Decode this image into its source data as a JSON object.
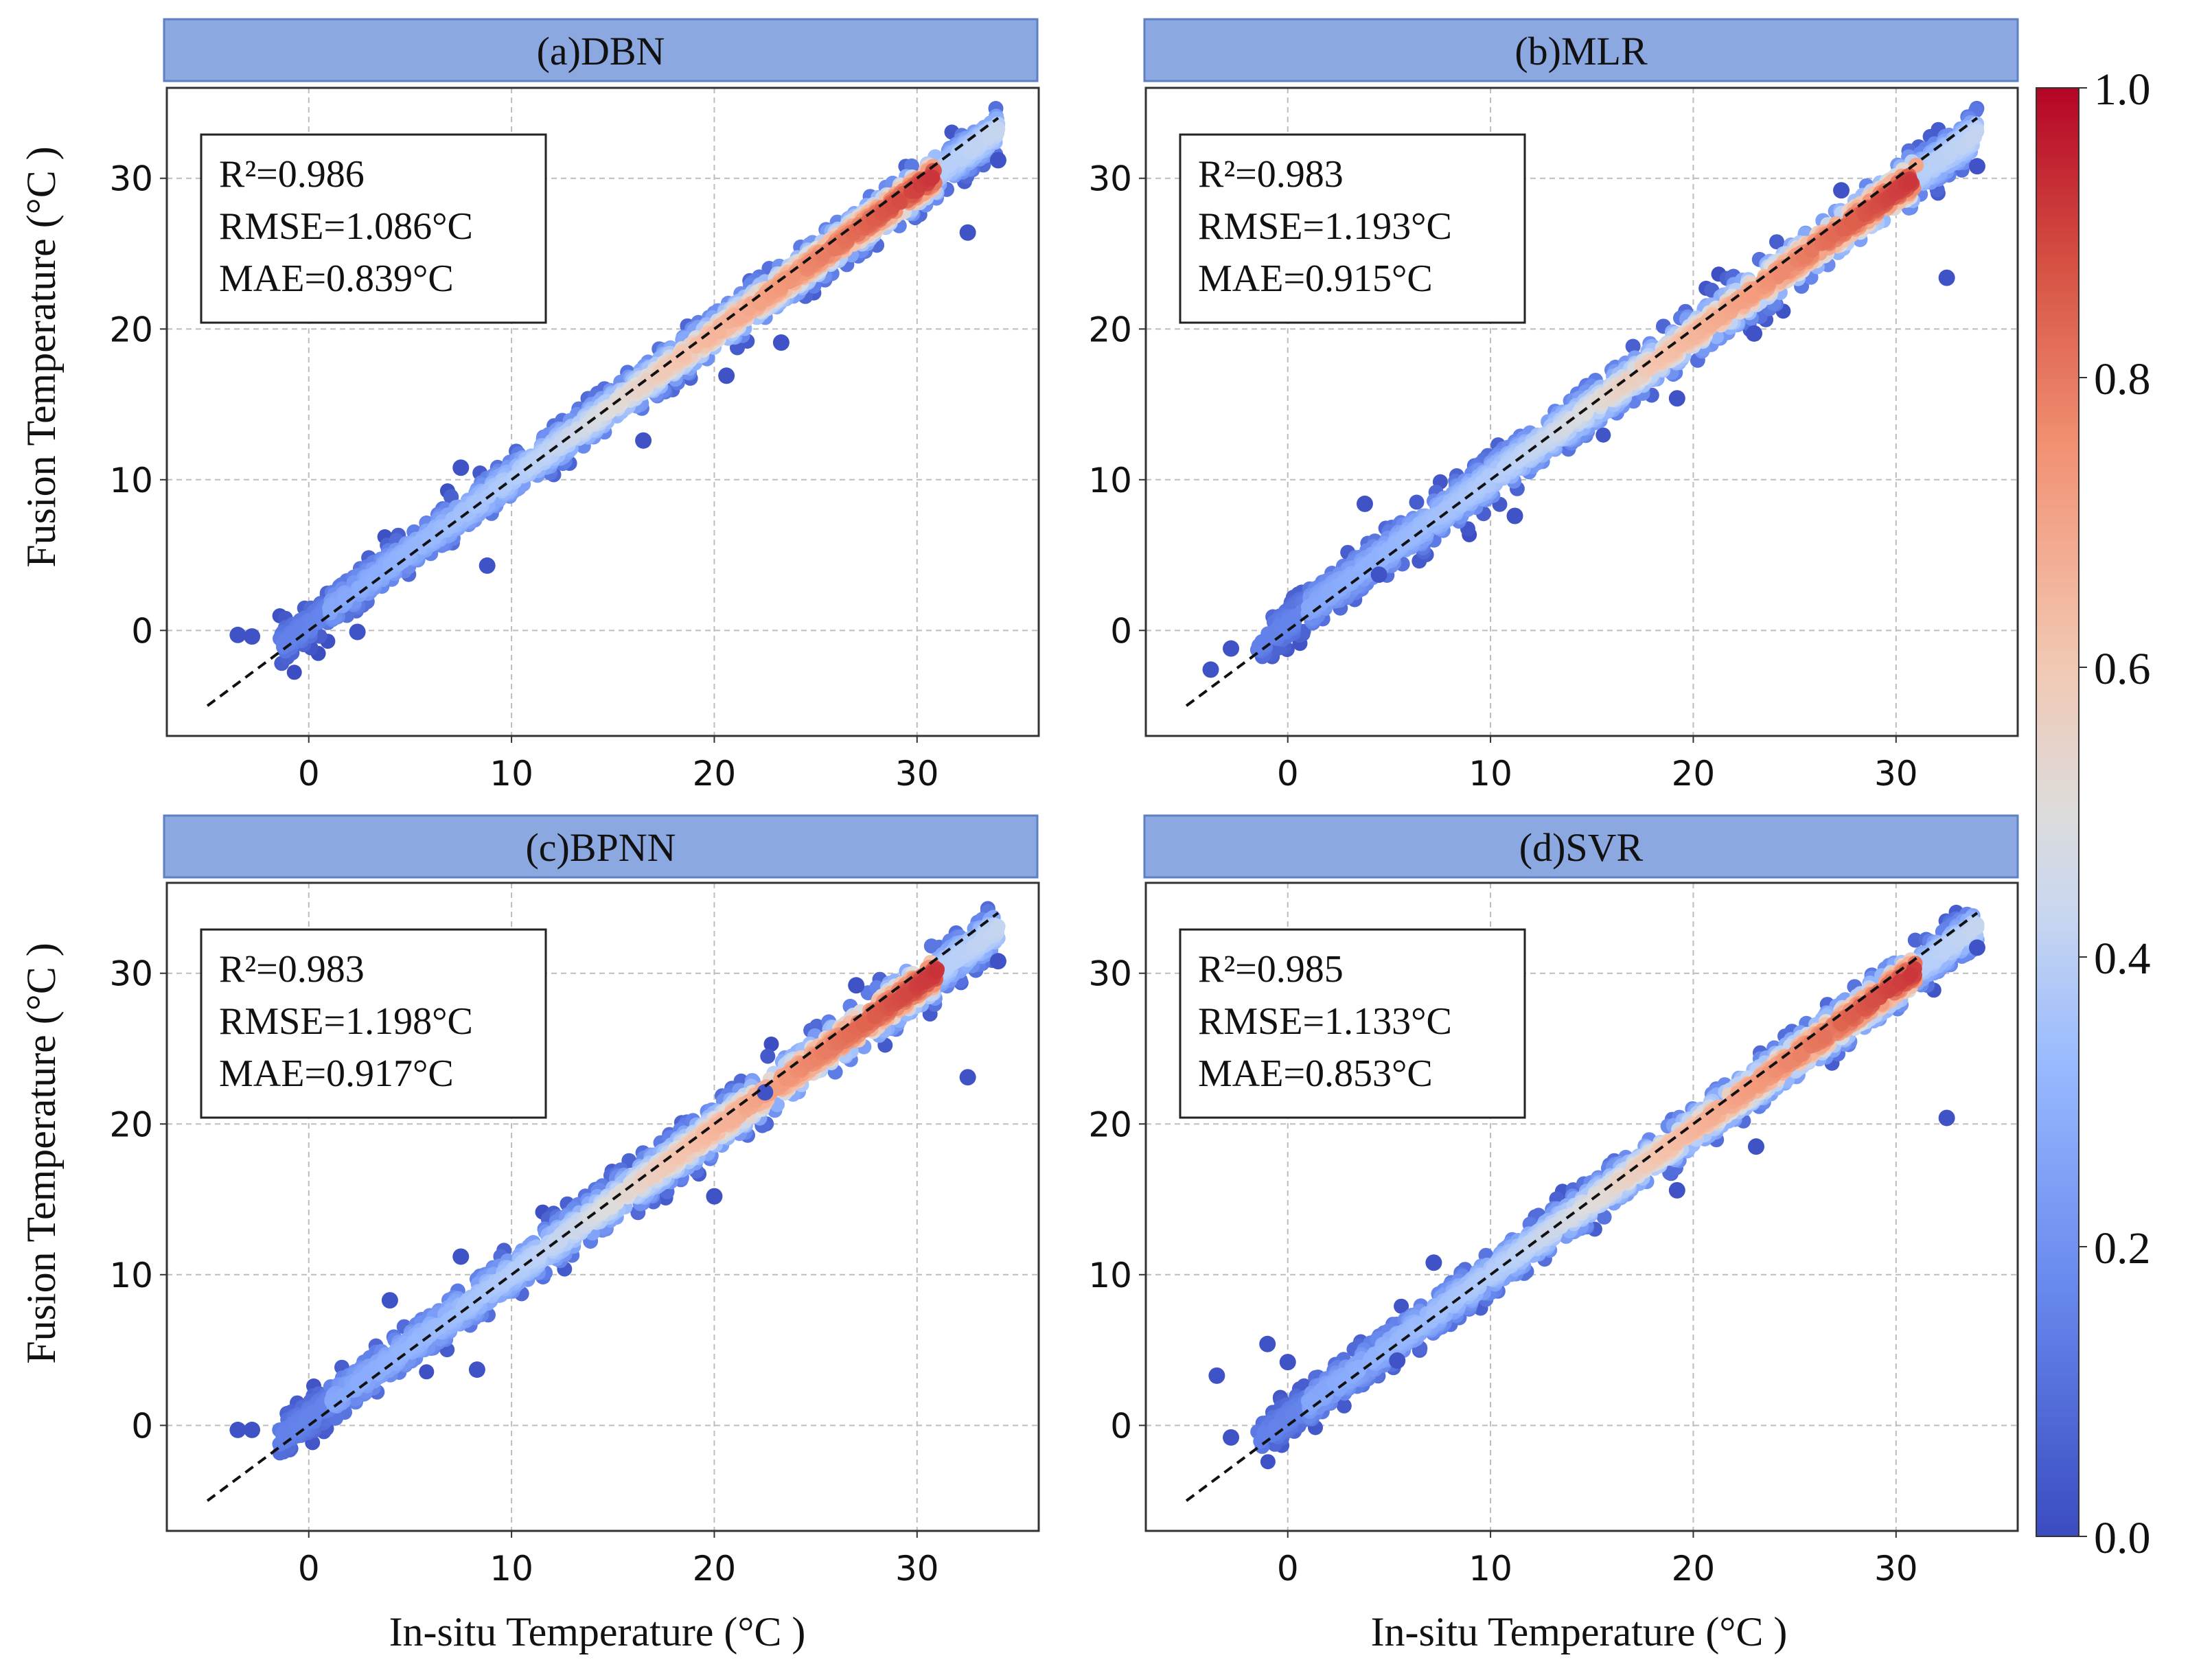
{
  "figure": {
    "ylabel": "Fusion Temperature (°C )",
    "xlabel": "In-situ Temperature (°C )"
  },
  "colorbar": {
    "min": 0.0,
    "max": 1.0,
    "ticks": [
      "0.0",
      "0.2",
      "0.4",
      "0.6",
      "0.8",
      "1.0"
    ],
    "colors": [
      "#3b4cc0",
      "#7b9ff9",
      "#c0d4f5",
      "#dddcdc",
      "#f2cbb7",
      "#ee8468",
      "#b40426"
    ]
  },
  "chart_data": [
    {
      "type": "scatter",
      "title": "(a)DBN",
      "stats": {
        "r2": "R²=0.986",
        "rmse": "RMSE=1.086°C",
        "mae": "MAE=0.839°C"
      },
      "xlabel": "In-situ Temperature (°C )",
      "ylabel": "Fusion Temperature (°C )",
      "xlim": [
        -7,
        36
      ],
      "ylim": [
        -7,
        36
      ],
      "xticks": [
        0,
        10,
        20,
        30
      ],
      "yticks": [
        0,
        10,
        20,
        30
      ],
      "grid": true,
      "color_encoding": "point density (0.0–1.0)",
      "one_to_one_line": [
        -5,
        34
      ],
      "band": {
        "x_range": [
          -1.5,
          34
        ],
        "half_width": 1.3,
        "slope": 0.965,
        "intercept": 0.4
      },
      "outliers": [
        {
          "x": -3.5,
          "y": -0.3
        },
        {
          "x": -2.8,
          "y": -0.4
        },
        {
          "x": 32.5,
          "y": 26.4
        },
        {
          "x": 34,
          "y": 31.2
        },
        {
          "x": 23.3,
          "y": 19.1
        },
        {
          "x": 8.8,
          "y": 4.3
        },
        {
          "x": 7.5,
          "y": 10.8
        },
        {
          "x": 16.5,
          "y": 12.6
        },
        {
          "x": 2.4,
          "y": -0.1
        },
        {
          "x": 20.6,
          "y": 16.9
        }
      ]
    },
    {
      "type": "scatter",
      "title": "(b)MLR",
      "stats": {
        "r2": "R²=0.983",
        "rmse": "RMSE=1.193°C",
        "mae": "MAE=0.915°C"
      },
      "xlabel": "In-situ Temperature (°C )",
      "ylabel": "Fusion Temperature (°C )",
      "xlim": [
        -7,
        36
      ],
      "ylim": [
        -7,
        36
      ],
      "xticks": [
        0,
        10,
        20,
        30
      ],
      "yticks": [
        0,
        10,
        20,
        30
      ],
      "grid": true,
      "color_encoding": "point density (0.0–1.0)",
      "one_to_one_line": [
        -5,
        34
      ],
      "band": {
        "x_range": [
          -1.5,
          34
        ],
        "half_width": 1.45,
        "slope": 0.955,
        "intercept": 0.5
      },
      "outliers": [
        {
          "x": -3.8,
          "y": -2.6
        },
        {
          "x": -2.8,
          "y": -1.2
        },
        {
          "x": 32.5,
          "y": 23.4
        },
        {
          "x": 34,
          "y": 30.8
        },
        {
          "x": 3.8,
          "y": 8.4
        },
        {
          "x": 4.5,
          "y": 3.7
        },
        {
          "x": 19.2,
          "y": 15.4
        },
        {
          "x": 27.3,
          "y": 29.2
        },
        {
          "x": 23,
          "y": 19.7
        },
        {
          "x": 11.2,
          "y": 7.6
        }
      ]
    },
    {
      "type": "scatter",
      "title": "(c)BPNN",
      "stats": {
        "r2": "R²=0.983",
        "rmse": "RMSE=1.198°C",
        "mae": "MAE=0.917°C"
      },
      "xlabel": "In-situ Temperature (°C )",
      "ylabel": "Fusion Temperature (°C )",
      "xlim": [
        -7,
        36
      ],
      "ylim": [
        -7,
        36
      ],
      "xticks": [
        0,
        10,
        20,
        30
      ],
      "yticks": [
        0,
        10,
        20,
        30
      ],
      "grid": true,
      "color_encoding": "point density (0.0–1.0)",
      "one_to_one_line": [
        -5,
        34
      ],
      "band": {
        "x_range": [
          -1.5,
          34
        ],
        "half_width": 1.45,
        "slope": 0.955,
        "intercept": 0.5
      },
      "outliers": [
        {
          "x": -3.5,
          "y": -0.3
        },
        {
          "x": -2.8,
          "y": -0.3
        },
        {
          "x": 32.5,
          "y": 23.1
        },
        {
          "x": 34,
          "y": 30.8
        },
        {
          "x": 4,
          "y": 8.3
        },
        {
          "x": 7.5,
          "y": 11.2
        },
        {
          "x": 8.3,
          "y": 3.7
        },
        {
          "x": 20,
          "y": 15.2
        },
        {
          "x": 22.5,
          "y": 22.1
        },
        {
          "x": 27,
          "y": 29.2
        }
      ]
    },
    {
      "type": "scatter",
      "title": "(d)SVR",
      "stats": {
        "r2": "R²=0.985",
        "rmse": "RMSE=1.133°C",
        "mae": "MAE=0.853°C"
      },
      "xlabel": "In-situ Temperature (°C )",
      "ylabel": "Fusion Temperature (°C )",
      "xlim": [
        -7,
        36
      ],
      "ylim": [
        -7,
        36
      ],
      "xticks": [
        0,
        10,
        20,
        30
      ],
      "yticks": [
        0,
        10,
        20,
        30
      ],
      "grid": true,
      "color_encoding": "point density (0.0–1.0)",
      "one_to_one_line": [
        -5,
        34
      ],
      "band": {
        "x_range": [
          -1.5,
          34
        ],
        "half_width": 1.35,
        "slope": 0.96,
        "intercept": 0.45
      },
      "outliers": [
        {
          "x": -3.5,
          "y": 3.3
        },
        {
          "x": -2.8,
          "y": -0.8
        },
        {
          "x": -1,
          "y": 5.4
        },
        {
          "x": 0,
          "y": 4.2
        },
        {
          "x": 32.5,
          "y": 20.4
        },
        {
          "x": 34,
          "y": 31.7
        },
        {
          "x": 5.4,
          "y": 4.3
        },
        {
          "x": 7.2,
          "y": 10.8
        },
        {
          "x": 19.2,
          "y": 15.6
        },
        {
          "x": 23.1,
          "y": 18.5
        }
      ]
    }
  ]
}
